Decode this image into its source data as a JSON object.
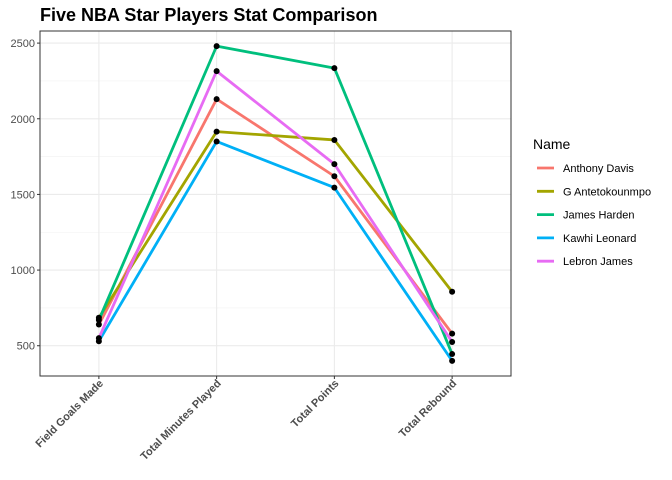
{
  "chart_data": {
    "type": "line",
    "title": "Five NBA Star Players Stat Comparison",
    "xlabel": "",
    "ylabel": "",
    "categories": [
      "Field Goals Made",
      "Total Minutes Played",
      "Total Points",
      "Total Rebound"
    ],
    "ylim": [
      300,
      2580
    ],
    "y_ticks": [
      500,
      1000,
      1500,
      2000,
      2500
    ],
    "y_tick_labels": [
      "500",
      "1000",
      "1500",
      "2000",
      "2500"
    ],
    "grid": true,
    "legend": {
      "title": "Name",
      "position": "right"
    },
    "series": [
      {
        "name": "Anthony Davis",
        "color": "#F8766D",
        "values": [
          640,
          2130,
          1620,
          580
        ]
      },
      {
        "name": "G Antetokounmpo",
        "color": "#A3A500",
        "values": [
          685,
          1915,
          1860,
          857
        ]
      },
      {
        "name": "James Harden",
        "color": "#00BF7D",
        "values": [
          670,
          2480,
          2335,
          445
        ]
      },
      {
        "name": "Kawhi Leonard",
        "color": "#00B0F6",
        "values": [
          530,
          1850,
          1545,
          400
        ]
      },
      {
        "name": "Lebron James",
        "color": "#E76BF3",
        "values": [
          550,
          2315,
          1700,
          525
        ]
      }
    ],
    "point_color": "#000000"
  }
}
